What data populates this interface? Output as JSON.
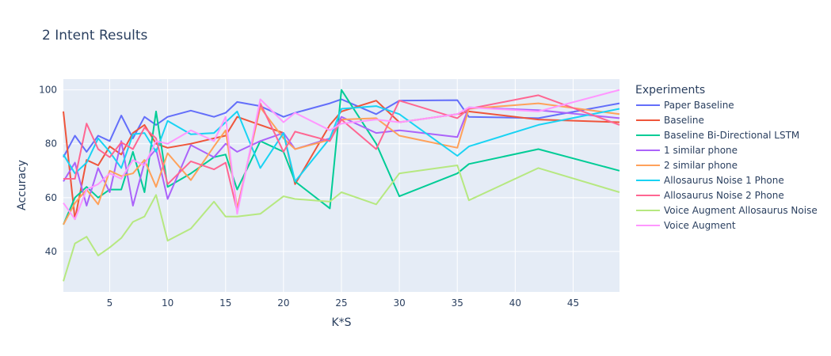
{
  "chart_data": {
    "type": "line",
    "title": "2 Intent Results",
    "xlabel": "K*S",
    "ylabel": "Accuracy",
    "xlim": [
      1,
      49
    ],
    "ylim": [
      25,
      104
    ],
    "xticks": [
      5,
      10,
      15,
      20,
      25,
      30,
      35,
      40,
      45
    ],
    "yticks": [
      40,
      60,
      80,
      100
    ],
    "grid": true,
    "legend_title": "Experiments",
    "legend_position": "right",
    "series": [
      {
        "name": "Paper Baseline",
        "color": "#636efa",
        "x": [
          1,
          2,
          3,
          4,
          5,
          6,
          7,
          8,
          9,
          10,
          12,
          14,
          15,
          16,
          18,
          20,
          21,
          24,
          25,
          28,
          30,
          35,
          36,
          42,
          49
        ],
        "y": [
          75,
          83,
          77,
          83,
          81,
          90.5,
          82,
          90,
          87,
          90,
          92.3,
          90,
          91.5,
          95.5,
          94,
          90,
          91.5,
          95,
          96.5,
          91,
          96,
          96.2,
          90,
          89.5,
          95
        ]
      },
      {
        "name": "Baseline",
        "color": "#ef553b",
        "x": [
          1,
          2,
          3,
          4,
          5,
          6,
          7,
          8,
          9,
          10,
          12,
          14,
          15,
          16,
          18,
          20,
          21,
          24,
          25,
          28,
          30,
          35,
          36,
          42,
          49
        ],
        "y": [
          92,
          52,
          74,
          72,
          79,
          76,
          84,
          87,
          80,
          78.5,
          80,
          82,
          83,
          90,
          87,
          84,
          65,
          87,
          92,
          96,
          88,
          91,
          92,
          89,
          88
        ]
      },
      {
        "name": "Baseline Bi-Directional LSTM",
        "color": "#00cc96",
        "x": [
          1,
          2,
          3,
          4,
          5,
          6,
          7,
          8,
          9,
          10,
          12,
          14,
          15,
          16,
          18,
          20,
          21,
          24,
          25,
          28,
          30,
          35,
          36,
          42,
          49
        ],
        "y": [
          50,
          60,
          64,
          60,
          63,
          63,
          77,
          62,
          92,
          64,
          69,
          75,
          76,
          63,
          81,
          77,
          66,
          56,
          100,
          80,
          60.5,
          69,
          72.5,
          78,
          70
        ]
      },
      {
        "name": "1 similar phone",
        "color": "#ab63fa",
        "x": [
          1,
          2,
          3,
          4,
          5,
          6,
          7,
          8,
          9,
          10,
          12,
          14,
          15,
          16,
          18,
          20,
          21,
          24,
          25,
          28,
          30,
          35,
          36,
          42,
          49
        ],
        "y": [
          66,
          73,
          57,
          71,
          62,
          81,
          57,
          73,
          78,
          59.5,
          79.5,
          75,
          80,
          77,
          81,
          84,
          78,
          82,
          90,
          84,
          85,
          82.5,
          93.5,
          92.5,
          89.5
        ]
      },
      {
        "name": "2 similar phone",
        "color": "#ffa15a",
        "x": [
          1,
          2,
          3,
          4,
          5,
          6,
          7,
          8,
          9,
          10,
          12,
          14,
          15,
          16,
          18,
          20,
          21,
          24,
          25,
          28,
          30,
          35,
          36,
          42,
          49
        ],
        "y": [
          50,
          58,
          63,
          57.5,
          70,
          68,
          69,
          74,
          64,
          76.5,
          66.5,
          79,
          85,
          56,
          93.5,
          82,
          78,
          81.5,
          89,
          89.5,
          83,
          78.5,
          93,
          95,
          91
        ]
      },
      {
        "name": "Allosaurus Noise 1 Phone",
        "color": "#19d3f3",
        "x": [
          1,
          2,
          3,
          4,
          5,
          6,
          7,
          8,
          9,
          10,
          12,
          14,
          15,
          16,
          18,
          20,
          21,
          24,
          25,
          28,
          30,
          35,
          36,
          42,
          49
        ],
        "y": [
          76,
          69,
          73,
          82,
          77,
          71,
          83.5,
          84,
          77,
          88.5,
          83.5,
          84,
          88,
          92,
          71,
          84,
          66,
          82,
          93,
          94,
          91,
          75.5,
          79,
          87,
          93
        ]
      },
      {
        "name": "Allosaurus Noise 2 Phone",
        "color": "#ff6692",
        "x": [
          1,
          2,
          3,
          4,
          5,
          6,
          7,
          8,
          9,
          10,
          12,
          14,
          15,
          16,
          18,
          20,
          21,
          24,
          25,
          28,
          30,
          35,
          36,
          42,
          49
        ],
        "y": [
          67,
          67,
          87.5,
          78,
          75,
          80.5,
          78,
          86,
          82,
          65,
          73.5,
          70.5,
          73,
          55,
          95,
          77,
          84.5,
          81,
          89,
          78,
          96,
          89.5,
          93,
          98,
          87
        ]
      },
      {
        "name": "Voice Augment Allosaurus Noise",
        "color": "#b6e880",
        "x": [
          1,
          2,
          3,
          4,
          5,
          6,
          7,
          8,
          9,
          10,
          12,
          14,
          15,
          16,
          18,
          20,
          21,
          24,
          25,
          28,
          30,
          35,
          36,
          42,
          49
        ],
        "y": [
          29,
          43,
          45.5,
          38.5,
          41.5,
          45,
          51,
          53,
          61,
          44,
          48.5,
          58.5,
          53,
          53,
          54,
          60.5,
          59.5,
          58.5,
          62,
          57.5,
          69,
          72,
          59,
          71,
          62
        ]
      },
      {
        "name": "Voice Augment",
        "color": "#ff97ff",
        "x": [
          1,
          2,
          3,
          4,
          5,
          6,
          7,
          8,
          9,
          10,
          12,
          14,
          15,
          16,
          18,
          20,
          21,
          24,
          25,
          28,
          30,
          35,
          36,
          42,
          49
        ],
        "y": [
          58,
          52,
          63,
          65,
          69,
          67,
          74,
          72,
          81,
          80,
          85,
          81,
          90,
          54,
          96.5,
          88,
          91.5,
          85,
          87.5,
          89,
          88,
          91,
          93.5,
          92,
          100
        ]
      }
    ]
  }
}
